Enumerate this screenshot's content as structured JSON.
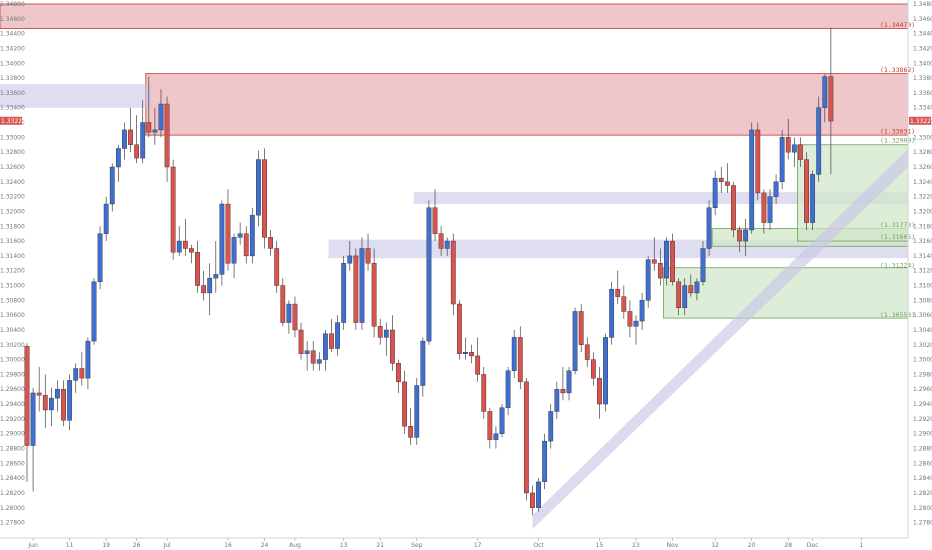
{
  "colors": {
    "bull": "#3f6fd1",
    "bear": "#d9534f",
    "red_zone": "#e8aeb2",
    "red_line": "#c0392b",
    "purple_zone": "#c9c6e6",
    "green_zone": "#cfe5c6",
    "green_line": "#6fa35a",
    "wick": "#444444",
    "axis_text": "#6f7683"
  },
  "chart_data": {
    "type": "candlestick",
    "instrument": "GBP/USD",
    "ylim": [
      1.277,
      1.348
    ],
    "y_ticks": [
      "1.27800",
      "1.28000",
      "1.28200",
      "1.28400",
      "1.28600",
      "1.28800",
      "1.29000",
      "1.29200",
      "1.29400",
      "1.29600",
      "1.29800",
      "1.30000",
      "1.30200",
      "1.30400",
      "1.30600",
      "1.30800",
      "1.31000",
      "1.31200",
      "1.31400",
      "1.31600",
      "1.31800",
      "1.32000",
      "1.32200",
      "1.32400",
      "1.32600",
      "1.32800",
      "1.33000",
      "1.33200",
      "1.33400",
      "1.33600",
      "1.33800",
      "1.34000",
      "1.34200",
      "1.34400",
      "1.34600",
      "1.34800"
    ],
    "x_ticks": [
      {
        "label": "Jun",
        "index": 1
      },
      {
        "label": "11",
        "index": 7
      },
      {
        "label": "19",
        "index": 13
      },
      {
        "label": "26",
        "index": 18
      },
      {
        "label": "Jul",
        "index": 23
      },
      {
        "label": "16",
        "index": 33
      },
      {
        "label": "24",
        "index": 39
      },
      {
        "label": "Aug",
        "index": 44
      },
      {
        "label": "13",
        "index": 52
      },
      {
        "label": "21",
        "index": 58
      },
      {
        "label": "Sep",
        "index": 64
      },
      {
        "label": "17",
        "index": 74
      },
      {
        "label": "Oct",
        "index": 84
      },
      {
        "label": "15",
        "index": 94
      },
      {
        "label": "23",
        "index": 100
      },
      {
        "label": "Nov",
        "index": 106
      },
      {
        "label": "12",
        "index": 113
      },
      {
        "label": "20",
        "index": 119
      },
      {
        "label": "28",
        "index": 125
      },
      {
        "label": "Dec",
        "index": 129
      },
      {
        "label": "1",
        "index": 137
      }
    ],
    "current_price": {
      "label": "1.33224",
      "value": 1.33224
    },
    "candles": [
      [
        1.3018,
        1.3022,
        1.2835,
        1.2884
      ],
      [
        1.2884,
        1.2962,
        1.2822,
        1.2955
      ],
      [
        1.2955,
        1.299,
        1.293,
        1.2952
      ],
      [
        1.2952,
        1.298,
        1.2908,
        1.2932
      ],
      [
        1.2932,
        1.2962,
        1.291,
        1.2948
      ],
      [
        1.2948,
        1.2972,
        1.293,
        1.296
      ],
      [
        1.296,
        1.2972,
        1.291,
        1.2918
      ],
      [
        1.2918,
        1.298,
        1.2905,
        1.2972
      ],
      [
        1.2972,
        1.2995,
        1.2955,
        1.2988
      ],
      [
        1.2988,
        1.301,
        1.2965,
        1.2975
      ],
      [
        1.2975,
        1.303,
        1.296,
        1.3025
      ],
      [
        1.3025,
        1.311,
        1.302,
        1.3105
      ],
      [
        1.3105,
        1.318,
        1.3095,
        1.317
      ],
      [
        1.317,
        1.322,
        1.316,
        1.321
      ],
      [
        1.321,
        1.3265,
        1.32,
        1.326
      ],
      [
        1.326,
        1.329,
        1.324,
        1.3285
      ],
      [
        1.3285,
        1.332,
        1.327,
        1.331
      ],
      [
        1.331,
        1.334,
        1.328,
        1.329
      ],
      [
        1.329,
        1.333,
        1.3265,
        1.3272
      ],
      [
        1.3272,
        1.335,
        1.3265,
        1.332
      ],
      [
        1.332,
        1.3382,
        1.33,
        1.3307
      ],
      [
        1.3307,
        1.334,
        1.329,
        1.331
      ],
      [
        1.331,
        1.3365,
        1.33,
        1.3345
      ],
      [
        1.3345,
        1.3355,
        1.324,
        1.326
      ],
      [
        1.326,
        1.327,
        1.3135,
        1.3145
      ],
      [
        1.3145,
        1.318,
        1.314,
        1.316
      ],
      [
        1.316,
        1.319,
        1.314,
        1.315
      ],
      [
        1.315,
        1.3155,
        1.313,
        1.3145
      ],
      [
        1.3145,
        1.316,
        1.309,
        1.31
      ],
      [
        1.31,
        1.312,
        1.308,
        1.309
      ],
      [
        1.309,
        1.313,
        1.306,
        1.311
      ],
      [
        1.311,
        1.316,
        1.309,
        1.3115
      ],
      [
        1.3115,
        1.3215,
        1.31,
        1.321
      ],
      [
        1.321,
        1.323,
        1.312,
        1.313
      ],
      [
        1.313,
        1.317,
        1.311,
        1.3165
      ],
      [
        1.3165,
        1.3185,
        1.3155,
        1.317
      ],
      [
        1.317,
        1.318,
        1.313,
        1.314
      ],
      [
        1.314,
        1.3205,
        1.313,
        1.3195
      ],
      [
        1.3195,
        1.3282,
        1.318,
        1.327
      ],
      [
        1.327,
        1.3285,
        1.315,
        1.3165
      ],
      [
        1.3165,
        1.3175,
        1.314,
        1.315
      ],
      [
        1.315,
        1.316,
        1.309,
        1.31
      ],
      [
        1.31,
        1.311,
        1.3045,
        1.305
      ],
      [
        1.305,
        1.308,
        1.3035,
        1.3075
      ],
      [
        1.3075,
        1.3085,
        1.303,
        1.304
      ],
      [
        1.304,
        1.305,
        1.3,
        1.3008
      ],
      [
        1.3008,
        1.3025,
        1.2985,
        1.3012
      ],
      [
        1.3012,
        1.3025,
        1.2985,
        1.2995
      ],
      [
        1.2995,
        1.301,
        1.2985,
        1.3
      ],
      [
        1.3,
        1.304,
        1.2985,
        1.3035
      ],
      [
        1.3035,
        1.3055,
        1.301,
        1.3015
      ],
      [
        1.3015,
        1.306,
        1.3005,
        1.305
      ],
      [
        1.305,
        1.314,
        1.304,
        1.313
      ],
      [
        1.313,
        1.316,
        1.312,
        1.314
      ],
      [
        1.314,
        1.315,
        1.304,
        1.305
      ],
      [
        1.305,
        1.3165,
        1.304,
        1.315
      ],
      [
        1.315,
        1.317,
        1.312,
        1.313
      ],
      [
        1.313,
        1.315,
        1.303,
        1.3045
      ],
      [
        1.3045,
        1.3055,
        1.302,
        1.303
      ],
      [
        1.303,
        1.305,
        1.3005,
        1.304
      ],
      [
        1.304,
        1.306,
        1.2985,
        1.2995
      ],
      [
        1.2995,
        1.3,
        1.2955,
        1.297
      ],
      [
        1.297,
        1.2985,
        1.29,
        1.291
      ],
      [
        1.291,
        1.2935,
        1.2885,
        1.2895
      ],
      [
        1.2895,
        1.2975,
        1.2885,
        1.2965
      ],
      [
        1.2965,
        1.303,
        1.295,
        1.3025
      ],
      [
        1.3025,
        1.3215,
        1.302,
        1.3205
      ],
      [
        1.3205,
        1.323,
        1.316,
        1.317
      ],
      [
        1.317,
        1.318,
        1.314,
        1.315
      ],
      [
        1.315,
        1.3165,
        1.314,
        1.316
      ],
      [
        1.316,
        1.317,
        1.306,
        1.3075
      ],
      [
        1.3075,
        1.308,
        1.3,
        1.3008
      ],
      [
        1.3008,
        1.303,
        1.3,
        1.301
      ],
      [
        1.301,
        1.302,
        1.2995,
        1.3005
      ],
      [
        1.3005,
        1.303,
        1.297,
        1.298
      ],
      [
        1.298,
        1.299,
        1.292,
        1.293
      ],
      [
        1.293,
        1.2935,
        1.288,
        1.2892
      ],
      [
        1.2892,
        1.291,
        1.288,
        1.29
      ],
      [
        1.29,
        1.294,
        1.2895,
        1.2935
      ],
      [
        1.2935,
        1.299,
        1.2925,
        1.2985
      ],
      [
        1.2985,
        1.304,
        1.2975,
        1.303
      ],
      [
        1.303,
        1.3045,
        1.296,
        1.297
      ],
      [
        1.297,
        1.2975,
        1.281,
        1.282
      ],
      [
        1.282,
        1.283,
        1.279,
        1.28
      ],
      [
        1.28,
        1.284,
        1.2795,
        1.2835
      ],
      [
        1.2835,
        1.29,
        1.2825,
        1.289
      ],
      [
        1.289,
        1.294,
        1.288,
        1.293
      ],
      [
        1.293,
        1.297,
        1.292,
        1.296
      ],
      [
        1.296,
        1.299,
        1.2945,
        1.2955
      ],
      [
        1.2955,
        1.299,
        1.2945,
        1.2985
      ],
      [
        1.2985,
        1.307,
        1.298,
        1.3065
      ],
      [
        1.3065,
        1.3075,
        1.301,
        1.302
      ],
      [
        1.302,
        1.303,
        1.299,
        1.3
      ],
      [
        1.3,
        1.301,
        1.2965,
        1.2975
      ],
      [
        1.2975,
        1.299,
        1.292,
        1.294
      ],
      [
        1.294,
        1.3035,
        1.293,
        1.303
      ],
      [
        1.303,
        1.3105,
        1.302,
        1.3095
      ],
      [
        1.3095,
        1.312,
        1.3075,
        1.3085
      ],
      [
        1.3085,
        1.31,
        1.3055,
        1.3065
      ],
      [
        1.3065,
        1.308,
        1.303,
        1.3045
      ],
      [
        1.3045,
        1.306,
        1.302,
        1.3052
      ],
      [
        1.3052,
        1.309,
        1.304,
        1.308
      ],
      [
        1.308,
        1.314,
        1.307,
        1.3135
      ],
      [
        1.3135,
        1.3165,
        1.312,
        1.313
      ],
      [
        1.313,
        1.315,
        1.31,
        1.311
      ],
      [
        1.311,
        1.3165,
        1.31,
        1.316
      ],
      [
        1.316,
        1.317,
        1.31,
        1.3105
      ],
      [
        1.3105,
        1.311,
        1.306,
        1.307
      ],
      [
        1.307,
        1.311,
        1.306,
        1.31
      ],
      [
        1.31,
        1.3115,
        1.3085,
        1.309
      ],
      [
        1.309,
        1.311,
        1.308,
        1.3105
      ],
      [
        1.3105,
        1.316,
        1.31,
        1.315
      ],
      [
        1.315,
        1.3215,
        1.314,
        1.3205
      ],
      [
        1.3205,
        1.3255,
        1.3195,
        1.3245
      ],
      [
        1.3245,
        1.326,
        1.3225,
        1.324
      ],
      [
        1.324,
        1.3265,
        1.3225,
        1.3235
      ],
      [
        1.3235,
        1.324,
        1.3165,
        1.3175
      ],
      [
        1.3175,
        1.318,
        1.3145,
        1.316
      ],
      [
        1.316,
        1.319,
        1.314,
        1.3175
      ],
      [
        1.3175,
        1.332,
        1.317,
        1.331
      ],
      [
        1.331,
        1.332,
        1.3215,
        1.3225
      ],
      [
        1.3225,
        1.323,
        1.317,
        1.3185
      ],
      [
        1.3185,
        1.323,
        1.3175,
        1.322
      ],
      [
        1.322,
        1.325,
        1.321,
        1.324
      ],
      [
        1.324,
        1.331,
        1.323,
        1.33
      ],
      [
        1.33,
        1.3325,
        1.327,
        1.328
      ],
      [
        1.328,
        1.33,
        1.326,
        1.329
      ],
      [
        1.329,
        1.33,
        1.326,
        1.327
      ],
      [
        1.327,
        1.328,
        1.3175,
        1.3185
      ],
      [
        1.3185,
        1.3255,
        1.3175,
        1.325
      ],
      [
        1.325,
        1.3355,
        1.324,
        1.334
      ],
      [
        1.334,
        1.3385,
        1.332,
        1.3382
      ],
      [
        1.3382,
        1.3448,
        1.325,
        1.3322
      ]
    ],
    "zones": [
      {
        "kind": "red",
        "y1": 1.3447,
        "y2": 1.348,
        "x_start": 0,
        "x_end": 137
      },
      {
        "kind": "red",
        "y1": 1.3303,
        "y2": 1.3386,
        "x_start": 20,
        "x_end": 137
      },
      {
        "kind": "purple",
        "y1": 1.334,
        "y2": 1.3372,
        "x_start": 0,
        "x_end": 20
      },
      {
        "kind": "purple",
        "y1": 1.321,
        "y2": 1.3226,
        "x_start": 64,
        "x_end": 137
      },
      {
        "kind": "purple",
        "y1": 1.3137,
        "y2": 1.3162,
        "x_start": 50,
        "x_end": 137
      },
      {
        "kind": "green",
        "y1": 1.3056,
        "y2": 1.3124,
        "x_start": 105,
        "x_end": 137
      },
      {
        "kind": "green",
        "y1": 1.3153,
        "y2": 1.3177,
        "x_start": 113,
        "x_end": 137
      },
      {
        "kind": "green",
        "y1": 1.316,
        "y2": 1.329,
        "x_start": 127,
        "x_end": 137
      }
    ],
    "levels": [
      {
        "label": "(1.34470)",
        "value": 1.3447,
        "kind": "red"
      },
      {
        "label": "(1.33862)",
        "value": 1.33862,
        "kind": "red"
      },
      {
        "label": "(1.33031)",
        "value": 1.33031,
        "kind": "red"
      },
      {
        "label": "(1.32909)",
        "value": 1.32909,
        "kind": "green"
      },
      {
        "label": "(1.31773)",
        "value": 1.31773,
        "kind": "green"
      },
      {
        "label": "(1.31605)",
        "value": 1.31605,
        "kind": "green"
      },
      {
        "label": "(1.31224)",
        "value": 1.31224,
        "kind": "green"
      },
      {
        "label": "(1.30558)",
        "value": 1.30558,
        "kind": "green"
      }
    ],
    "trend_channel": {
      "x1": 83,
      "y1": 1.279,
      "x2": 137,
      "y2": 1.326
    },
    "grid": false
  }
}
